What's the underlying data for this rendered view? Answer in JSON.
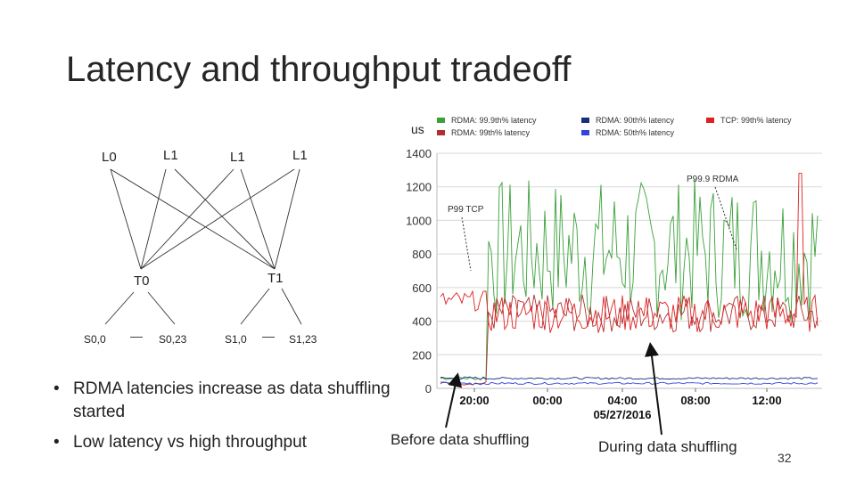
{
  "slide": {
    "title": "Latency and throughput tradeoff",
    "page_number": "32"
  },
  "topology": {
    "leaves": [
      "L0",
      "L1",
      "L1",
      "L1"
    ],
    "tors": [
      "T0",
      "T1"
    ],
    "servers": [
      "S0,0",
      "S0,23",
      "S1,0",
      "S1,23"
    ],
    "separator": "—"
  },
  "bullets": [
    "RDMA latencies increase as data shuffling  started",
    "Low latency vs high throughput"
  ],
  "captions": {
    "before": "Before data shuffling",
    "during": "During data shuffling"
  },
  "chart_data": {
    "type": "line",
    "unit_label": "us",
    "yticks": [
      0,
      200,
      400,
      600,
      800,
      1000,
      1200,
      1400
    ],
    "ylim": [
      0,
      1400
    ],
    "xticks": [
      "20:00",
      "00:00",
      "04:00",
      "08:00",
      "12:00"
    ],
    "date_label": "05/27/2016",
    "grid": true,
    "legend_position": "top",
    "legend": [
      {
        "name": "RDMA: 99.9th% latency",
        "color": "#3aa03a"
      },
      {
        "name": "RDMA: 99th% latency",
        "color": "#b03030"
      },
      {
        "name": "RDMA: 90th% latency",
        "color": "#1a2f7a"
      },
      {
        "name": "RDMA: 50th% latency",
        "color": "#3344dd"
      },
      {
        "name": "TCP: 99th% latency",
        "color": "#e02020"
      }
    ],
    "annotations": [
      "P99 TCP",
      "P99.9 RDMA"
    ],
    "series": [
      {
        "name": "RDMA: 99.9th% latency",
        "color": "#3aa03a",
        "levels": {
          "before": 60,
          "during_min": 400,
          "during_max": 1250
        }
      },
      {
        "name": "RDMA: 99th% latency",
        "color": "#b03030",
        "levels": {
          "before": 30,
          "during_min": 330,
          "during_max": 560
        }
      },
      {
        "name": "RDMA: 90th% latency",
        "color": "#1a2f7a",
        "levels": {
          "before": 60,
          "during": 60
        }
      },
      {
        "name": "RDMA: 50th% latency",
        "color": "#3344dd",
        "levels": {
          "before": 30,
          "during": 30
        }
      },
      {
        "name": "TCP: 99th% latency",
        "color": "#e02020",
        "levels": {
          "before": 520,
          "during_min": 330,
          "during_max": 560,
          "spike": 1280
        }
      }
    ]
  }
}
